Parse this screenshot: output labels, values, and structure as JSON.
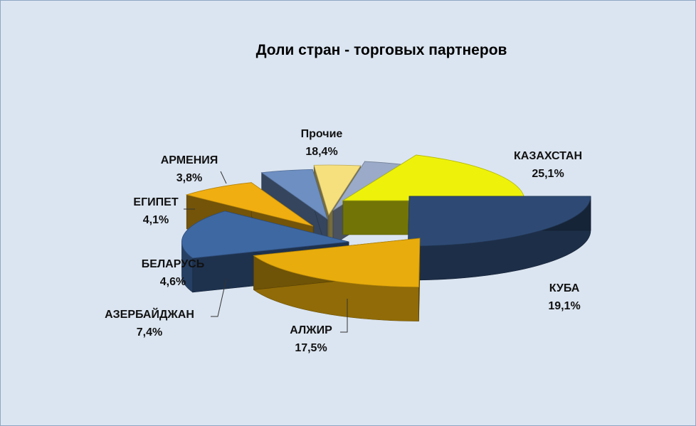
{
  "chart_data": {
    "type": "pie",
    "title": "Доли стран - торговых партнеров",
    "slices": [
      {
        "name": "КАЗАХСТАН",
        "value": 25.1,
        "label": "25,1%",
        "color": "#2e4a74"
      },
      {
        "name": "КУБА",
        "value": 19.1,
        "label": "19,1%",
        "color": "#e8ac0c"
      },
      {
        "name": "АЛЖИР",
        "value": 17.5,
        "label": "17,5%",
        "color": "#3e68a2"
      },
      {
        "name": "АЗЕРБАЙДЖАН",
        "value": 7.4,
        "label": "7,4%",
        "color": "#f0ae10"
      },
      {
        "name": "БЕЛАРУСЬ",
        "value": 4.6,
        "label": "4,6%",
        "color": "#6d8fc2"
      },
      {
        "name": "ЕГИПЕТ",
        "value": 4.1,
        "label": "4,1%",
        "color": "#f6e07e"
      },
      {
        "name": "АРМЕНИЯ",
        "value": 3.8,
        "label": "3,8%",
        "color": "#9aaac8"
      },
      {
        "name": "Прочие",
        "value": 18.4,
        "label": "18,4%",
        "color": "#eef20a"
      }
    ],
    "exploded": true,
    "style": "3d"
  }
}
